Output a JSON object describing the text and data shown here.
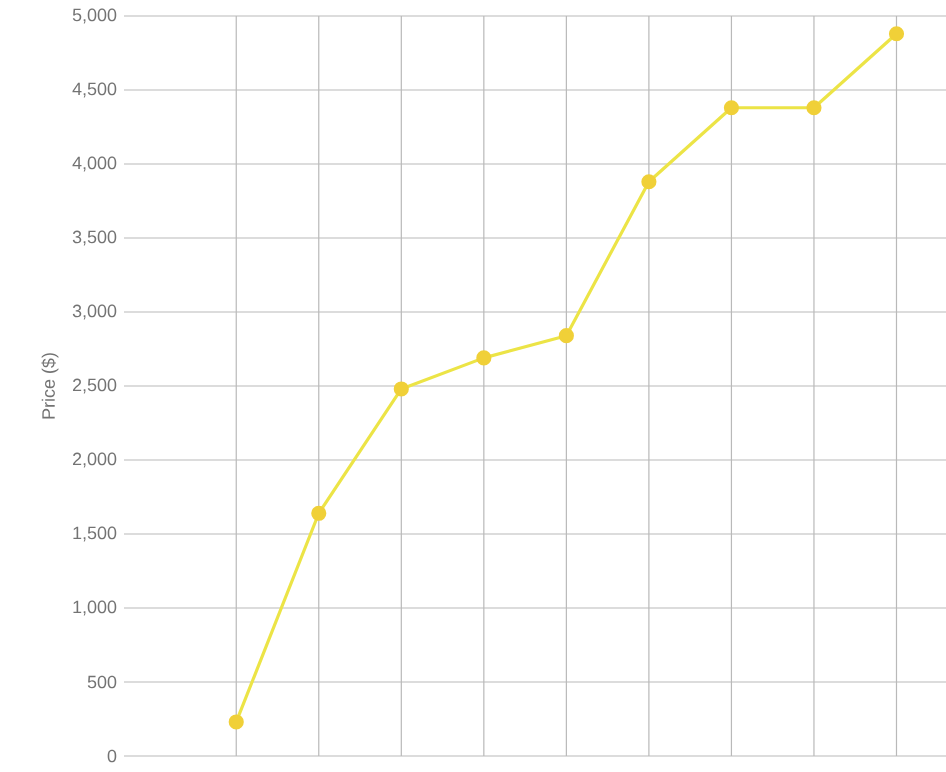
{
  "chart_data": {
    "type": "line",
    "ylabel": "Price ($)",
    "categories": [
      null,
      null,
      null,
      null,
      null,
      null,
      null,
      null,
      null
    ],
    "values": [
      230,
      1640,
      2480,
      2690,
      2840,
      3880,
      4380,
      4380,
      4880
    ],
    "color": "#ece446",
    "marker": "circle",
    "line_style": "solid",
    "grid": true,
    "ylim": [
      0,
      5000
    ],
    "yticks": [
      0,
      500,
      {
        "value": 1000,
        "label": "1,000"
      },
      {
        "value": 1500,
        "label": "1,500"
      },
      {
        "value": 2000,
        "label": "2,000"
      },
      {
        "value": 2500,
        "label": "2,500"
      },
      {
        "value": 3000,
        "label": "3,000"
      },
      {
        "value": 3500,
        "label": "3,500"
      },
      {
        "value": 4000,
        "label": "4,000"
      },
      {
        "value": 4500,
        "label": "4,500"
      },
      {
        "value": 5000,
        "label": "5,000"
      }
    ],
    "tick_labels": "y"
  }
}
